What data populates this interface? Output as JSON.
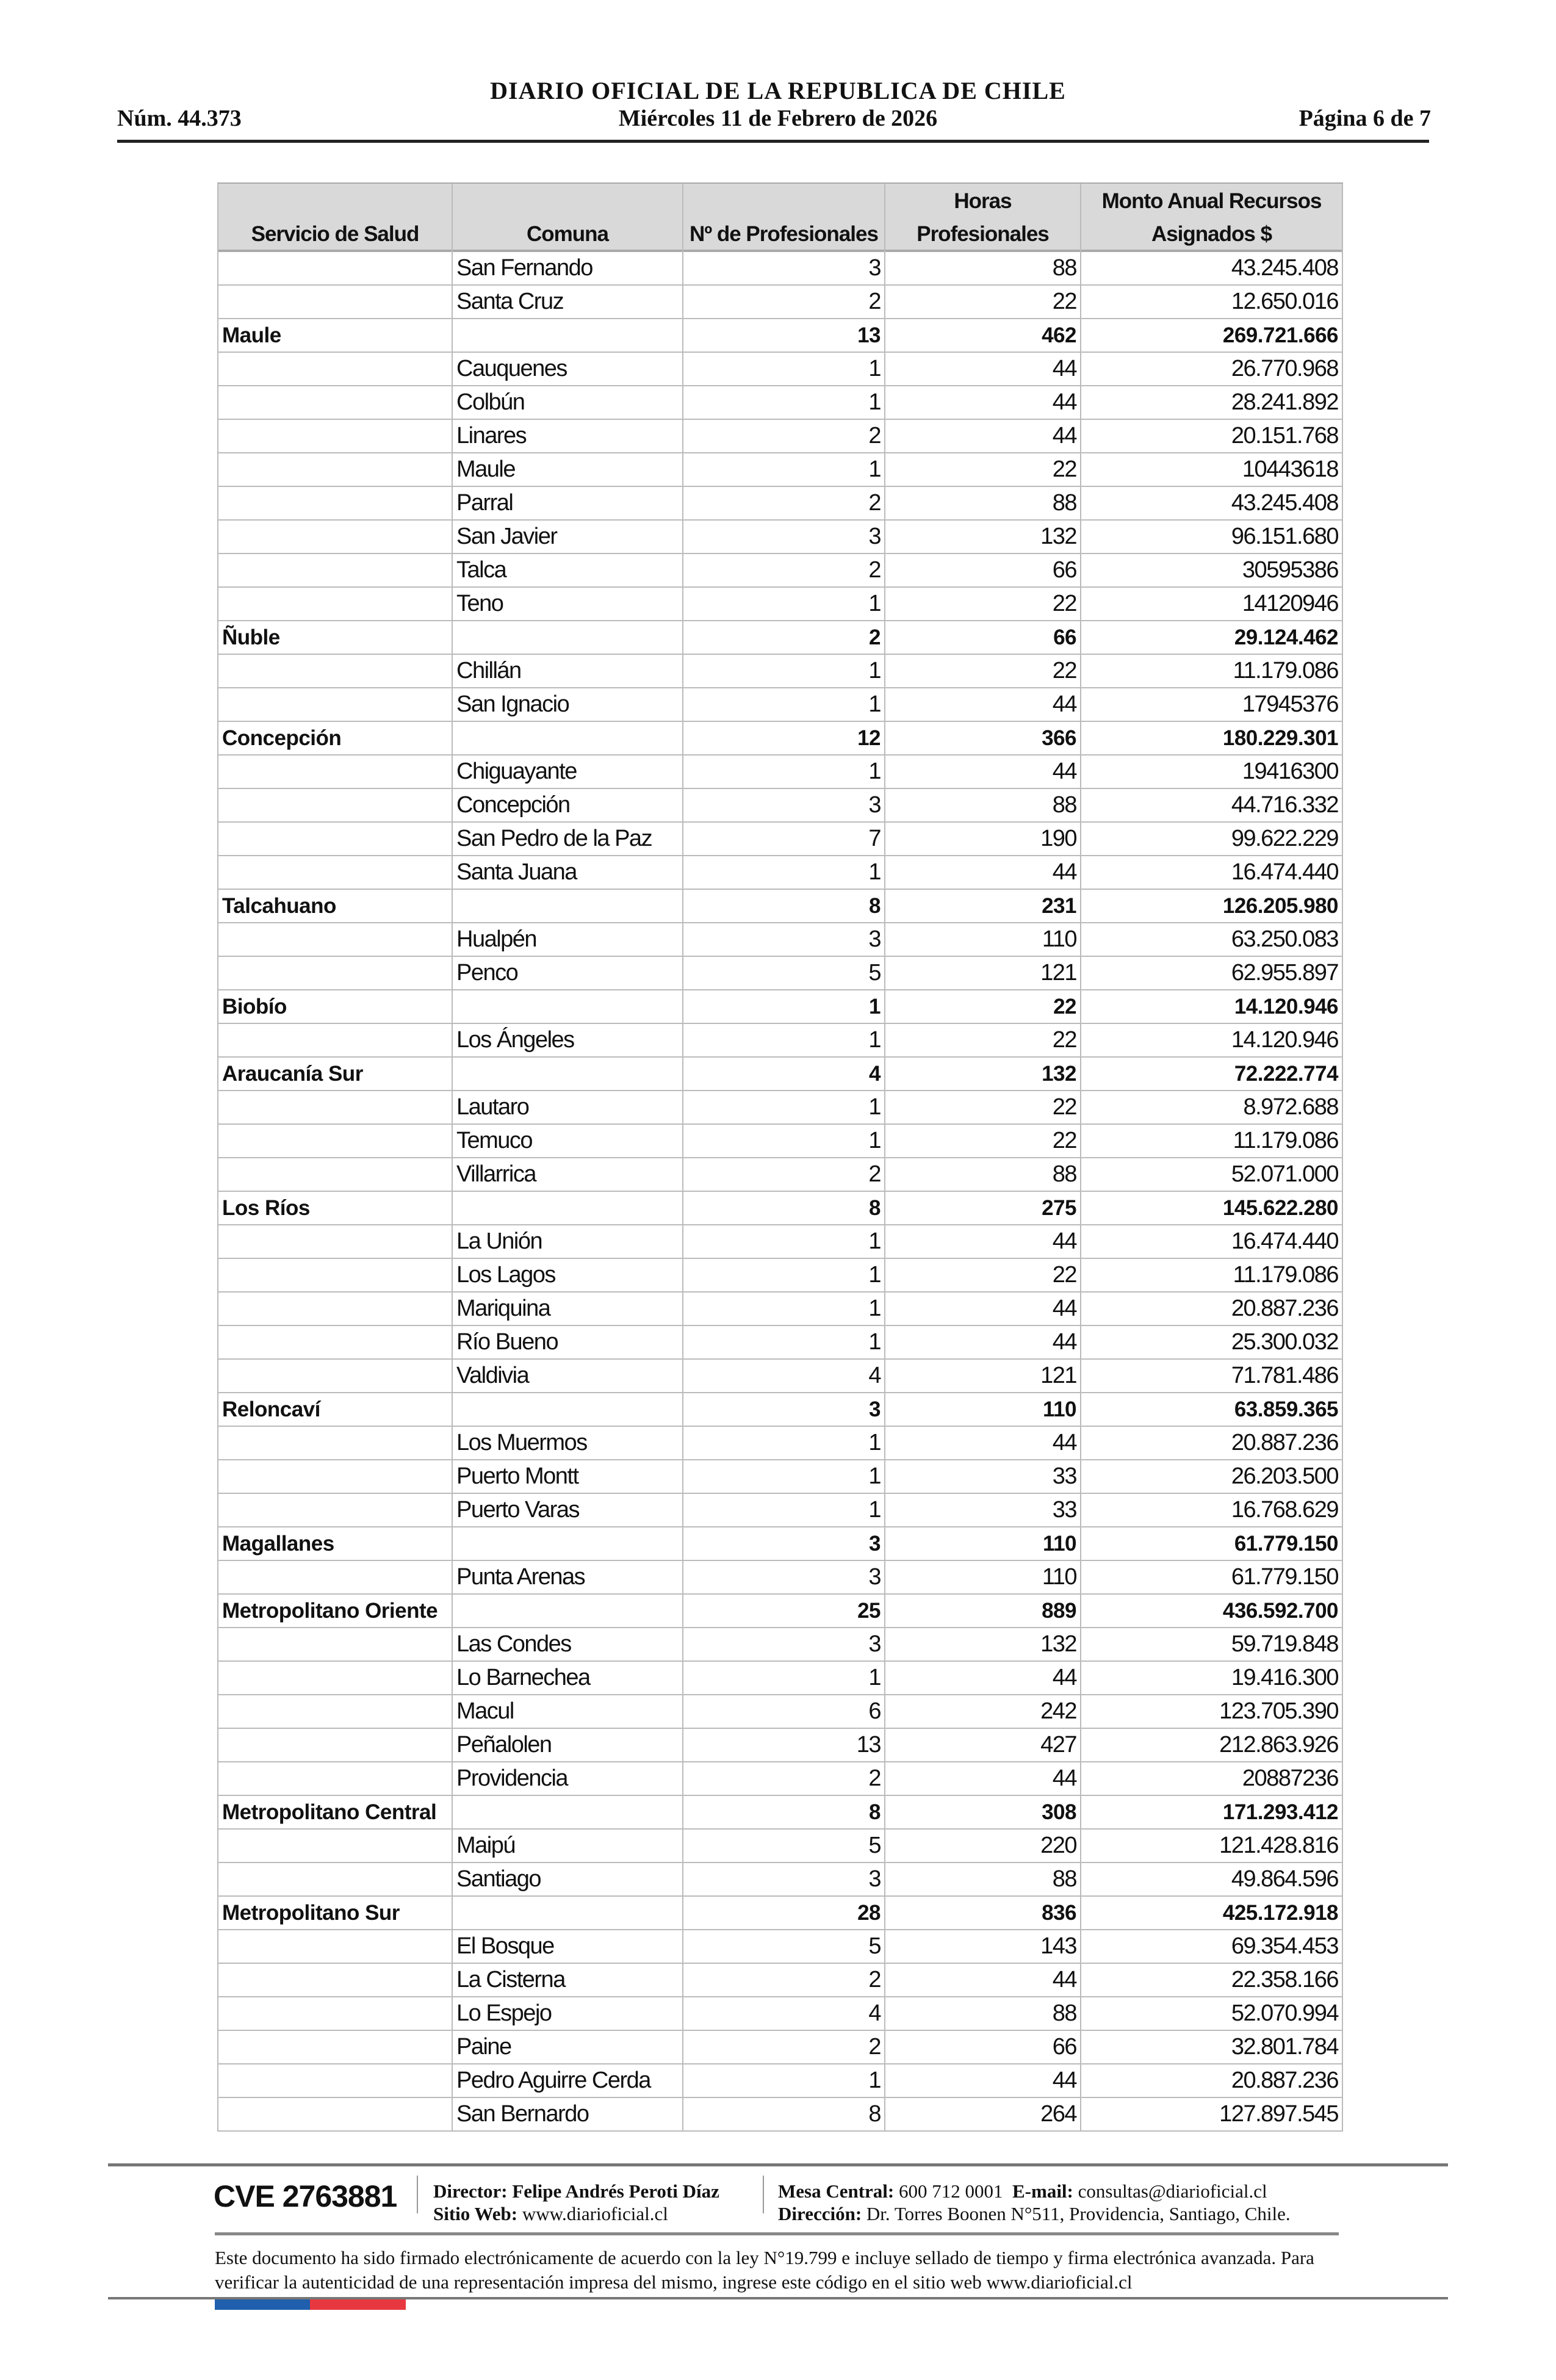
{
  "header": {
    "title": "DIARIO OFICIAL DE LA REPUBLICA DE CHILE",
    "number": "Núm. 44.373",
    "date": "Miércoles 11 de Febrero de 2026",
    "page": "Página 6 de 7"
  },
  "table": {
    "columns": [
      "Servicio de Salud",
      "Comuna",
      "Nº de Profesionales",
      "Horas Profesionales",
      "Monto Anual Recursos Asignados $"
    ],
    "rows": [
      {
        "servicio": "",
        "comuna": "San Fernando",
        "n": "3",
        "horas": "88",
        "monto": "43.245.408"
      },
      {
        "servicio": "",
        "comuna": "Santa Cruz",
        "n": "2",
        "horas": "22",
        "monto": "12.650.016"
      },
      {
        "servicio": "Maule",
        "comuna": "",
        "n": "13",
        "horas": "462",
        "monto": "269.721.666",
        "group": true
      },
      {
        "servicio": "",
        "comuna": "Cauquenes",
        "n": "1",
        "horas": "44",
        "monto": "26.770.968"
      },
      {
        "servicio": "",
        "comuna": "Colbún",
        "n": "1",
        "horas": "44",
        "monto": "28.241.892"
      },
      {
        "servicio": "",
        "comuna": "Linares",
        "n": "2",
        "horas": "44",
        "monto": "20.151.768"
      },
      {
        "servicio": "",
        "comuna": "Maule",
        "n": "1",
        "horas": "22",
        "monto": "10443618"
      },
      {
        "servicio": "",
        "comuna": "Parral",
        "n": "2",
        "horas": "88",
        "monto": "43.245.408"
      },
      {
        "servicio": "",
        "comuna": "San Javier",
        "n": "3",
        "horas": "132",
        "monto": "96.151.680"
      },
      {
        "servicio": "",
        "comuna": "Talca",
        "n": "2",
        "horas": "66",
        "monto": "30595386"
      },
      {
        "servicio": "",
        "comuna": "Teno",
        "n": "1",
        "horas": "22",
        "monto": "14120946"
      },
      {
        "servicio": "Ñuble",
        "comuna": "",
        "n": "2",
        "horas": "66",
        "monto": "29.124.462",
        "group": true
      },
      {
        "servicio": "",
        "comuna": "Chillán",
        "n": "1",
        "horas": "22",
        "monto": "11.179.086"
      },
      {
        "servicio": "",
        "comuna": "San Ignacio",
        "n": "1",
        "horas": "44",
        "monto": "17945376"
      },
      {
        "servicio": "Concepción",
        "comuna": "",
        "n": "12",
        "horas": "366",
        "monto": "180.229.301",
        "group": true
      },
      {
        "servicio": "",
        "comuna": "Chiguayante",
        "n": "1",
        "horas": "44",
        "monto": "19416300"
      },
      {
        "servicio": "",
        "comuna": "Concepción",
        "n": "3",
        "horas": "88",
        "monto": "44.716.332"
      },
      {
        "servicio": "",
        "comuna": "San Pedro de la Paz",
        "n": "7",
        "horas": "190",
        "monto": "99.622.229"
      },
      {
        "servicio": "",
        "comuna": "Santa Juana",
        "n": "1",
        "horas": "44",
        "monto": "16.474.440"
      },
      {
        "servicio": "Talcahuano",
        "comuna": "",
        "n": "8",
        "horas": "231",
        "monto": "126.205.980",
        "group": true
      },
      {
        "servicio": "",
        "comuna": "Hualpén",
        "n": "3",
        "horas": "110",
        "monto": "63.250.083"
      },
      {
        "servicio": "",
        "comuna": "Penco",
        "n": "5",
        "horas": "121",
        "monto": "62.955.897"
      },
      {
        "servicio": "Biobío",
        "comuna": "",
        "n": "1",
        "horas": "22",
        "monto": "14.120.946",
        "group": true
      },
      {
        "servicio": "",
        "comuna": "Los Ángeles",
        "n": "1",
        "horas": "22",
        "monto": "14.120.946"
      },
      {
        "servicio": "Araucanía Sur",
        "comuna": "",
        "n": "4",
        "horas": "132",
        "monto": "72.222.774",
        "group": true
      },
      {
        "servicio": "",
        "comuna": "Lautaro",
        "n": "1",
        "horas": "22",
        "monto": "8.972.688"
      },
      {
        "servicio": "",
        "comuna": "Temuco",
        "n": "1",
        "horas": "22",
        "monto": "11.179.086"
      },
      {
        "servicio": "",
        "comuna": "Villarrica",
        "n": "2",
        "horas": "88",
        "monto": "52.071.000"
      },
      {
        "servicio": "Los Ríos",
        "comuna": "",
        "n": "8",
        "horas": "275",
        "monto": "145.622.280",
        "group": true
      },
      {
        "servicio": "",
        "comuna": "La Unión",
        "n": "1",
        "horas": "44",
        "monto": "16.474.440"
      },
      {
        "servicio": "",
        "comuna": "Los Lagos",
        "n": "1",
        "horas": "22",
        "monto": "11.179.086"
      },
      {
        "servicio": "",
        "comuna": "Mariquina",
        "n": "1",
        "horas": "44",
        "monto": "20.887.236"
      },
      {
        "servicio": "",
        "comuna": "Río Bueno",
        "n": "1",
        "horas": "44",
        "monto": "25.300.032"
      },
      {
        "servicio": "",
        "comuna": "Valdivia",
        "n": "4",
        "horas": "121",
        "monto": "71.781.486"
      },
      {
        "servicio": "Reloncaví",
        "comuna": "",
        "n": "3",
        "horas": "110",
        "monto": "63.859.365",
        "group": true
      },
      {
        "servicio": "",
        "comuna": "Los Muermos",
        "n": "1",
        "horas": "44",
        "monto": "20.887.236"
      },
      {
        "servicio": "",
        "comuna": "Puerto Montt",
        "n": "1",
        "horas": "33",
        "monto": "26.203.500"
      },
      {
        "servicio": "",
        "comuna": "Puerto Varas",
        "n": "1",
        "horas": "33",
        "monto": "16.768.629"
      },
      {
        "servicio": "Magallanes",
        "comuna": "",
        "n": "3",
        "horas": "110",
        "monto": "61.779.150",
        "group": true
      },
      {
        "servicio": "",
        "comuna": "Punta Arenas",
        "n": "3",
        "horas": "110",
        "monto": "61.779.150"
      },
      {
        "servicio": "Metropolitano Oriente",
        "comuna": "",
        "n": "25",
        "horas": "889",
        "monto": "436.592.700",
        "group": true
      },
      {
        "servicio": "",
        "comuna": "Las Condes",
        "n": "3",
        "horas": "132",
        "monto": "59.719.848"
      },
      {
        "servicio": "",
        "comuna": "Lo Barnechea",
        "n": "1",
        "horas": "44",
        "monto": "19.416.300"
      },
      {
        "servicio": "",
        "comuna": "Macul",
        "n": "6",
        "horas": "242",
        "monto": "123.705.390"
      },
      {
        "servicio": "",
        "comuna": "Peñalolen",
        "n": "13",
        "horas": "427",
        "monto": "212.863.926"
      },
      {
        "servicio": "",
        "comuna": "Providencia",
        "n": "2",
        "horas": "44",
        "monto": "20887236"
      },
      {
        "servicio": "Metropolitano Central",
        "comuna": "",
        "n": "8",
        "horas": "308",
        "monto": "171.293.412",
        "group": true
      },
      {
        "servicio": "",
        "comuna": "Maipú",
        "n": "5",
        "horas": "220",
        "monto": "121.428.816"
      },
      {
        "servicio": "",
        "comuna": "Santiago",
        "n": "3",
        "horas": "88",
        "monto": "49.864.596"
      },
      {
        "servicio": "Metropolitano Sur",
        "comuna": "",
        "n": "28",
        "horas": "836",
        "monto": "425.172.918",
        "group": true
      },
      {
        "servicio": "",
        "comuna": "El Bosque",
        "n": "5",
        "horas": "143",
        "monto": "69.354.453"
      },
      {
        "servicio": "",
        "comuna": "La Cisterna",
        "n": "2",
        "horas": "44",
        "monto": "22.358.166"
      },
      {
        "servicio": "",
        "comuna": "Lo Espejo",
        "n": "4",
        "horas": "88",
        "monto": "52.070.994"
      },
      {
        "servicio": "",
        "comuna": "Paine",
        "n": "2",
        "horas": "66",
        "monto": "32.801.784"
      },
      {
        "servicio": "",
        "comuna": "Pedro Aguirre Cerda",
        "n": "1",
        "horas": "44",
        "monto": "20.887.236"
      },
      {
        "servicio": "",
        "comuna": "San Bernardo",
        "n": "8",
        "horas": "264",
        "monto": "127.897.545"
      }
    ]
  },
  "footer": {
    "cve": "CVE 2763881",
    "director_label": "Director:",
    "director": "Felipe Andrés Peroti Díaz",
    "web_label": "Sitio Web:",
    "web": "www.diarioficial.cl",
    "mesa_label": "Mesa Central:",
    "mesa": "600 712 0001",
    "email_label": "E-mail:",
    "email": "consultas@diarioficial.cl",
    "direccion_label": "Dirección:",
    "direccion": "Dr. Torres Boonen N°511, Providencia, Santiago, Chile.",
    "legal": "Este documento ha sido firmado electrónicamente de acuerdo con la ley N°19.799 e incluye sellado de tiempo y firma electrónica avanzada. Para verificar la autenticidad de una representación impresa del mismo, ingrese este código en el sitio web www.diarioficial.cl"
  },
  "colors": {
    "flag_blue": "#1f5fae",
    "flag_red": "#e8383f",
    "header_bg": "#d9d9d9"
  }
}
